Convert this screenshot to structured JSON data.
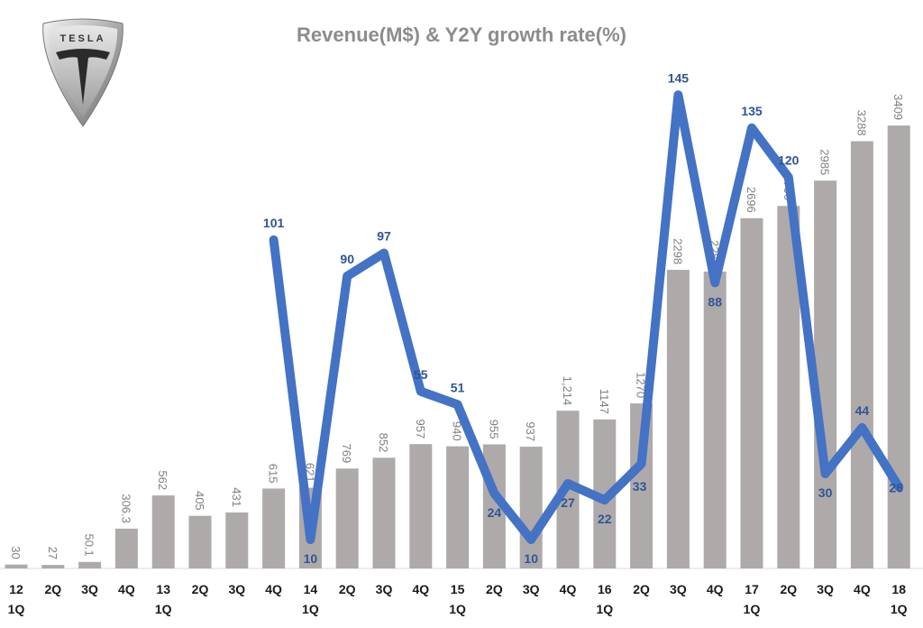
{
  "logo": {
    "text": "TESLA"
  },
  "chart_data": {
    "type": "bar+line",
    "title": "Revenue(M$) & Y2Y growth rate(%)",
    "categories": [
      "12\n1Q",
      "2Q",
      "3Q",
      "4Q",
      "13\n1Q",
      "2Q",
      "3Q",
      "4Q",
      "14\n1Q",
      "2Q",
      "3Q",
      "4Q",
      "15\n1Q",
      "2Q",
      "3Q",
      "4Q",
      "16\n1Q",
      "2Q",
      "3Q",
      "4Q",
      "17\n1Q",
      "2Q",
      "3Q",
      "4Q",
      "18\n1Q"
    ],
    "series": [
      {
        "type": "bar",
        "values": [
          30,
          27,
          50.1,
          306.3,
          562,
          405,
          431,
          615,
          621,
          769,
          852,
          957,
          940,
          955,
          937,
          1214,
          1147,
          1270,
          2298,
          2285,
          2696,
          2790,
          2985,
          3288,
          3409
        ],
        "labels": [
          "30",
          "27",
          "50.1",
          "306.3",
          "562",
          "405",
          "431",
          "615",
          "621",
          "769",
          "852",
          "957",
          "940",
          "955",
          "937",
          "1,214",
          "1147",
          "1270",
          "2298",
          "2285",
          "2696",
          "2790",
          "2985",
          "3288",
          "3409"
        ],
        "color": "#aeaaaa"
      },
      {
        "type": "line",
        "values": [
          null,
          null,
          null,
          null,
          null,
          null,
          null,
          101,
          10,
          90,
          97,
          55,
          51,
          24,
          10,
          27,
          22,
          33,
          145,
          88,
          135,
          120,
          30,
          44,
          26
        ],
        "color": "#4472c4"
      }
    ],
    "ylim_bar": [
      0,
      4360
    ],
    "ylim_line": [
      0,
      174
    ],
    "grid": false,
    "legend": "none"
  }
}
